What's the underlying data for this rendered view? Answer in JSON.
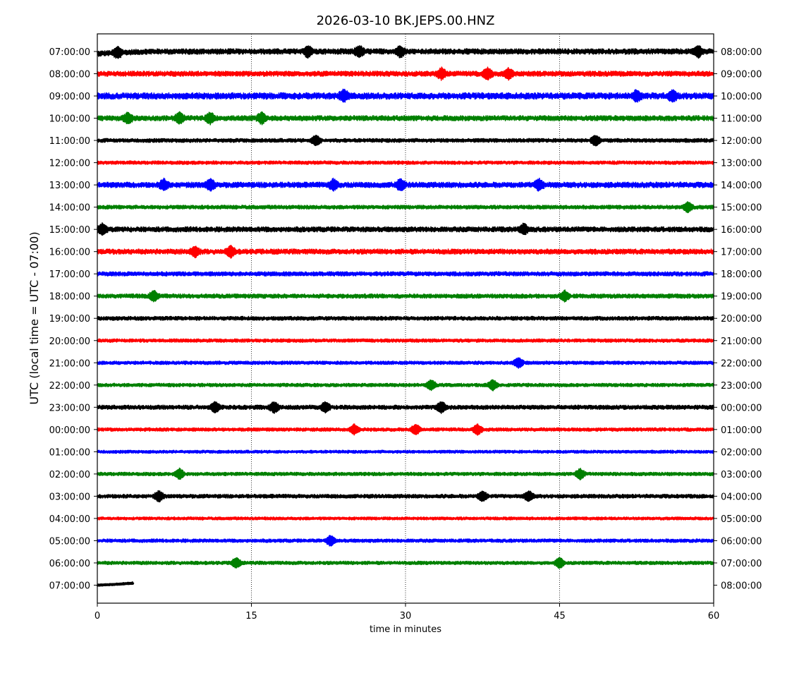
{
  "chart_data": {
    "type": "line",
    "title": "2026-03-10 BK.JEPS.00.HNZ",
    "xlabel": "time in minutes",
    "ylabel": "UTC (local time = UTC - 07:00)",
    "xlim": [
      0,
      60
    ],
    "xticks": [
      0,
      15,
      30,
      45,
      60
    ],
    "grid": "vertical dotted lines at 15, 30, 45",
    "colors": [
      "#000000",
      "#ff0000",
      "#0000ff",
      "#008000"
    ],
    "rows": [
      {
        "left": "07:00:00",
        "right": "08:00:00",
        "amp": 2.6,
        "events": [
          2,
          20.5,
          25.5,
          29.5,
          58.5
        ],
        "drift_start": 3
      },
      {
        "left": "08:00:00",
        "right": "09:00:00",
        "amp": 2.4,
        "events": [
          33.5,
          38,
          40
        ]
      },
      {
        "left": "09:00:00",
        "right": "10:00:00",
        "amp": 3,
        "events": [
          24,
          52.5,
          56
        ]
      },
      {
        "left": "10:00:00",
        "right": "11:00:00",
        "amp": 2.4,
        "events": [
          3,
          8,
          11,
          16
        ]
      },
      {
        "left": "11:00:00",
        "right": "12:00:00",
        "amp": 1.8,
        "events": [
          21.3,
          48.5
        ]
      },
      {
        "left": "12:00:00",
        "right": "13:00:00",
        "amp": 1.6,
        "events": []
      },
      {
        "left": "13:00:00",
        "right": "14:00:00",
        "amp": 2.6,
        "events": [
          6.5,
          11,
          23,
          29.5,
          43
        ]
      },
      {
        "left": "14:00:00",
        "right": "15:00:00",
        "amp": 1.8,
        "events": [
          57.5
        ]
      },
      {
        "left": "15:00:00",
        "right": "16:00:00",
        "amp": 2.4,
        "events": [
          0.5,
          41.5
        ]
      },
      {
        "left": "16:00:00",
        "right": "17:00:00",
        "amp": 2.4,
        "events": [
          9.5,
          13
        ]
      },
      {
        "left": "17:00:00",
        "right": "18:00:00",
        "amp": 2,
        "events": []
      },
      {
        "left": "18:00:00",
        "right": "19:00:00",
        "amp": 2,
        "events": [
          5.5,
          45.5
        ]
      },
      {
        "left": "19:00:00",
        "right": "20:00:00",
        "amp": 1.8,
        "events": []
      },
      {
        "left": "20:00:00",
        "right": "21:00:00",
        "amp": 1.6,
        "events": []
      },
      {
        "left": "21:00:00",
        "right": "22:00:00",
        "amp": 1.6,
        "events": [
          41
        ]
      },
      {
        "left": "22:00:00",
        "right": "23:00:00",
        "amp": 1.6,
        "events": [
          32.5,
          38.5
        ]
      },
      {
        "left": "23:00:00",
        "right": "00:00:00",
        "amp": 2,
        "events": [
          11.5,
          17.2,
          22.2,
          33.5
        ]
      },
      {
        "left": "00:00:00",
        "right": "01:00:00",
        "amp": 1.6,
        "events": [
          25,
          31,
          37
        ]
      },
      {
        "left": "01:00:00",
        "right": "02:00:00",
        "amp": 1.4,
        "events": []
      },
      {
        "left": "02:00:00",
        "right": "03:00:00",
        "amp": 1.6,
        "events": [
          8,
          47
        ]
      },
      {
        "left": "03:00:00",
        "right": "04:00:00",
        "amp": 1.8,
        "events": [
          6,
          37.5,
          42
        ]
      },
      {
        "left": "04:00:00",
        "right": "05:00:00",
        "amp": 1.4,
        "events": []
      },
      {
        "left": "05:00:00",
        "right": "06:00:00",
        "amp": 1.6,
        "events": [
          22.7
        ]
      },
      {
        "left": "06:00:00",
        "right": "07:00:00",
        "amp": 1.6,
        "events": [
          13.5,
          45
        ]
      },
      {
        "left": "07:00:00",
        "right": "08:00:00",
        "amp": 0.6,
        "events": [],
        "end_minute": 3.5,
        "drift_end": -3
      }
    ]
  }
}
